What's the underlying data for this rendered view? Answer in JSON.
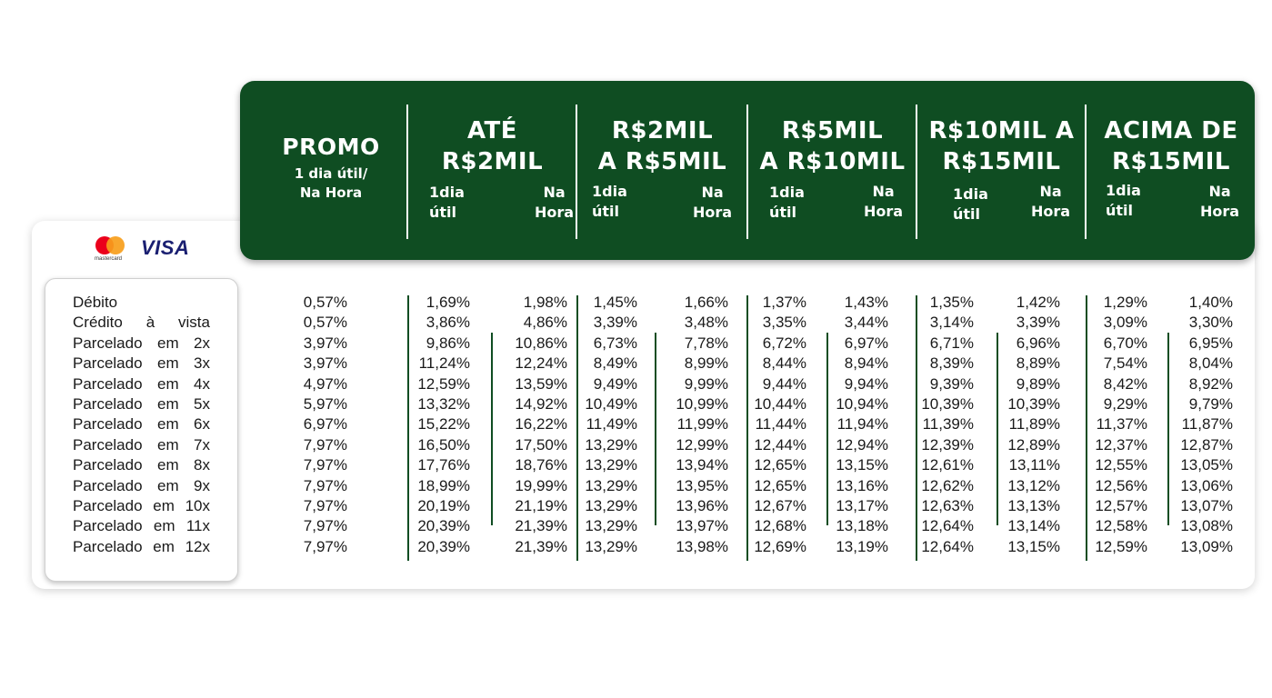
{
  "header": {
    "promo": {
      "title": "PROMO",
      "sub1": "1 dia útil/",
      "sub2": "Na Hora"
    },
    "tiers": [
      {
        "title1": "ATÉ",
        "title2": "R$2MIL",
        "a1": "1dia",
        "a2": "útil",
        "b1": "Na",
        "b2": "Hora"
      },
      {
        "title1": "R$2MIL",
        "title2": "A R$5MIL",
        "a1": "1dia",
        "a2": "útil",
        "b1": "Na",
        "b2": "Hora"
      },
      {
        "title1": "R$5MIL",
        "title2": "A R$10MIL",
        "a1": "1dia",
        "a2": "útil",
        "b1": "Na",
        "b2": "Hora"
      },
      {
        "title1": "R$10MIL A",
        "title2": "R$15MIL",
        "a1": "1dia",
        "a2": "útil",
        "b1": "Na",
        "b2": "Hora"
      },
      {
        "title1": "ACIMA DE",
        "title2": "R$15MIL",
        "a1": "1dia",
        "a2": "útil",
        "b1": "Na",
        "b2": "Hora"
      }
    ]
  },
  "brands": {
    "mastercard": "mastercard",
    "visa": "VISA",
    "mastercard_colors": [
      "#eb001b",
      "#f79e1b"
    ],
    "visa_color": "#1a1f71"
  },
  "colors": {
    "header_green": "#0f4d22"
  },
  "rows": [
    {
      "label": [
        "Débito"
      ],
      "promo": "0,57%",
      "v": [
        "1,69%",
        "1,98%",
        "1,45%",
        "1,66%",
        "1,37%",
        "1,43%",
        "1,35%",
        "1,42%",
        "1,29%",
        "1,40%"
      ]
    },
    {
      "label": [
        "Crédito",
        "à",
        "vista"
      ],
      "promo": "0,57%",
      "v": [
        "3,86%",
        "4,86%",
        "3,39%",
        "3,48%",
        "3,35%",
        "3,44%",
        "3,14%",
        "3,39%",
        "3,09%",
        "3,30%"
      ]
    },
    {
      "label": [
        "Parcelado",
        "em",
        "2x"
      ],
      "promo": "3,97%",
      "v": [
        "9,86%",
        "10,86%",
        "6,73%",
        "7,78%",
        "6,72%",
        "6,97%",
        "6,71%",
        "6,96%",
        "6,70%",
        "6,95%"
      ]
    },
    {
      "label": [
        "Parcelado",
        "em",
        "3x"
      ],
      "promo": "3,97%",
      "v": [
        "11,24%",
        "12,24%",
        "8,49%",
        "8,99%",
        "8,44%",
        "8,94%",
        "8,39%",
        "8,89%",
        "7,54%",
        "8,04%"
      ]
    },
    {
      "label": [
        "Parcelado",
        "em",
        "4x"
      ],
      "promo": "4,97%",
      "v": [
        "12,59%",
        "13,59%",
        "9,49%",
        "9,99%",
        "9,44%",
        "9,94%",
        "9,39%",
        "9,89%",
        "8,42%",
        "8,92%"
      ]
    },
    {
      "label": [
        "Parcelado",
        "em",
        "5x"
      ],
      "promo": "5,97%",
      "v": [
        "13,32%",
        "14,92%",
        "10,49%",
        "10,99%",
        "10,44%",
        "10,94%",
        "10,39%",
        "10,39%",
        "9,29%",
        "9,79%"
      ]
    },
    {
      "label": [
        "Parcelado",
        "em",
        "6x"
      ],
      "promo": "6,97%",
      "v": [
        "15,22%",
        "16,22%",
        "11,49%",
        "11,99%",
        "11,44%",
        "11,94%",
        "11,39%",
        "11,89%",
        "11,37%",
        "11,87%"
      ]
    },
    {
      "label": [
        "Parcelado",
        "em",
        "7x"
      ],
      "promo": "7,97%",
      "v": [
        "16,50%",
        "17,50%",
        "13,29%",
        "12,99%",
        "12,44%",
        "12,94%",
        "12,39%",
        "12,89%",
        "12,37%",
        "12,87%"
      ]
    },
    {
      "label": [
        "Parcelado",
        "em",
        "8x"
      ],
      "promo": "7,97%",
      "v": [
        "17,76%",
        "18,76%",
        "13,29%",
        "13,94%",
        "12,65%",
        "13,15%",
        "12,61%",
        "13,11%",
        "12,55%",
        "13,05%"
      ]
    },
    {
      "label": [
        "Parcelado",
        "em",
        "9x"
      ],
      "promo": "7,97%",
      "v": [
        "18,99%",
        "19,99%",
        "13,29%",
        "13,95%",
        "12,65%",
        "13,16%",
        "12,62%",
        "13,12%",
        "12,56%",
        "13,06%"
      ]
    },
    {
      "label": [
        "Parcelado",
        "em",
        "10x"
      ],
      "promo": "7,97%",
      "v": [
        "20,19%",
        "21,19%",
        "13,29%",
        "13,96%",
        "12,67%",
        "13,17%",
        "12,63%",
        "13,13%",
        "12,57%",
        "13,07%"
      ]
    },
    {
      "label": [
        "Parcelado",
        "em",
        "11x"
      ],
      "promo": "7,97%",
      "v": [
        "20,39%",
        "21,39%",
        "13,29%",
        "13,97%",
        "12,68%",
        "13,18%",
        "12,64%",
        "13,14%",
        "12,58%",
        "13,08%"
      ]
    },
    {
      "label": [
        "Parcelado",
        "em",
        "12x"
      ],
      "promo": "7,97%",
      "v": [
        "20,39%",
        "21,39%",
        "13,29%",
        "13,98%",
        "12,69%",
        "13,19%",
        "12,64%",
        "13,15%",
        "12,59%",
        "13,09%"
      ]
    }
  ]
}
